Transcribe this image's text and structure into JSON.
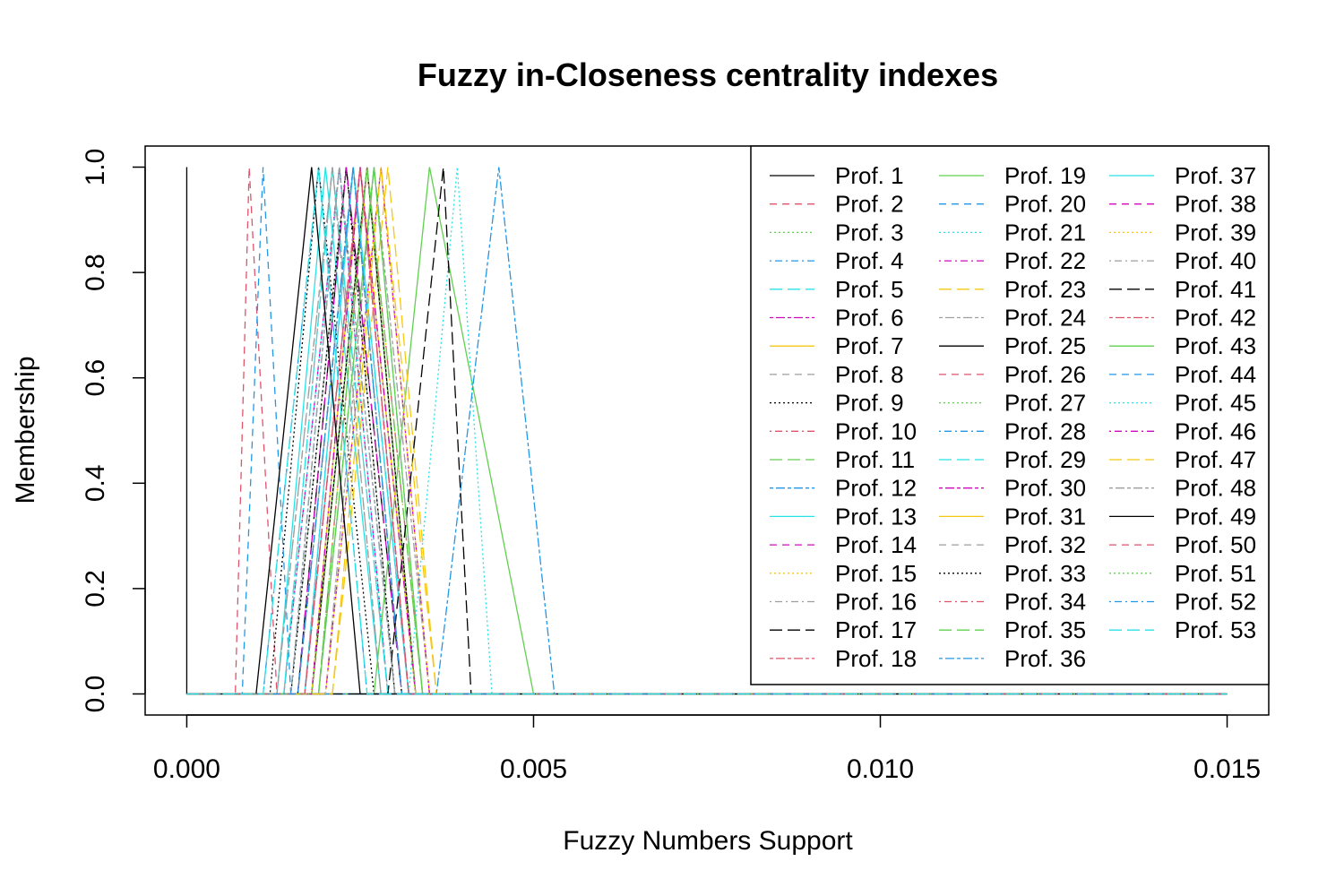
{
  "chart_data": {
    "type": "line",
    "title": "Fuzzy in-Closeness centrality indexes",
    "xlabel": "Fuzzy Numbers Support",
    "ylabel": "Membership",
    "xlim": [
      -0.0006,
      0.0156
    ],
    "ylim": [
      -0.04,
      1.04
    ],
    "x_ticks": [
      0.0,
      0.005,
      0.01,
      0.015
    ],
    "x_tick_labels": [
      "0.000",
      "0.005",
      "0.010",
      "0.015"
    ],
    "y_ticks": [
      0.0,
      0.2,
      0.4,
      0.6,
      0.8,
      1.0
    ],
    "y_tick_labels": [
      "0.0",
      "0.2",
      "0.4",
      "0.6",
      "0.8",
      "1.0"
    ],
    "grid": false,
    "legend_position": "top-right",
    "legend_columns": 3,
    "palette": [
      "#000000",
      "#DF536B",
      "#61D04F",
      "#2297E6",
      "#28E2E5",
      "#CD0BBC",
      "#F5C710",
      "#9E9E9E"
    ],
    "linetype_cycle": [
      "solid",
      "dashed",
      "dotted",
      "dotdash",
      "longdash",
      "twodash"
    ],
    "series": [
      {
        "name": "Prof. 1",
        "x": [
          0,
          0,
          0,
          0.015
        ],
        "y": [
          0,
          1,
          0,
          0
        ]
      },
      {
        "name": "Prof. 2",
        "x": [
          0,
          0.0007,
          0.0009,
          0.0013,
          0.015
        ],
        "y": [
          0,
          0,
          1,
          0,
          0
        ]
      },
      {
        "name": "Prof. 3",
        "x": [
          0,
          0.0016,
          0.0024,
          0.0031,
          0.015
        ],
        "y": [
          0,
          0,
          1,
          0,
          0
        ]
      },
      {
        "name": "Prof. 4",
        "x": [
          0,
          0.0011,
          0.0019,
          0.0026,
          0.015
        ],
        "y": [
          0,
          0,
          1,
          0,
          0
        ]
      },
      {
        "name": "Prof. 5",
        "x": [
          0,
          0.0017,
          0.0025,
          0.0032,
          0.015
        ],
        "y": [
          0,
          0,
          1,
          0,
          0
        ]
      },
      {
        "name": "Prof. 6",
        "x": [
          0,
          0.0014,
          0.0022,
          0.0029,
          0.015
        ],
        "y": [
          0,
          0,
          1,
          0,
          0
        ]
      },
      {
        "name": "Prof. 7",
        "x": [
          0,
          0.0018,
          0.0026,
          0.0033,
          0.015
        ],
        "y": [
          0,
          0,
          1,
          0,
          0
        ]
      },
      {
        "name": "Prof. 8",
        "x": [
          0,
          0.0015,
          0.0023,
          0.003,
          0.015
        ],
        "y": [
          0,
          0,
          1,
          0,
          0
        ]
      },
      {
        "name": "Prof. 9",
        "x": [
          0,
          0.0012,
          0.0019,
          0.0027,
          0.015
        ],
        "y": [
          0,
          0,
          1,
          0,
          0
        ]
      },
      {
        "name": "Prof. 10",
        "x": [
          0,
          0.0016,
          0.0024,
          0.0031,
          0.015
        ],
        "y": [
          0,
          0,
          1,
          0,
          0
        ]
      },
      {
        "name": "Prof. 11",
        "x": [
          0,
          0.0018,
          0.0025,
          0.0033,
          0.015
        ],
        "y": [
          0,
          0,
          1,
          0,
          0
        ]
      },
      {
        "name": "Prof. 12",
        "x": [
          0,
          0.0015,
          0.0022,
          0.003,
          0.015
        ],
        "y": [
          0,
          0,
          1,
          0,
          0
        ]
      },
      {
        "name": "Prof. 13",
        "x": [
          0,
          0.0013,
          0.002,
          0.0028,
          0.015
        ],
        "y": [
          0,
          0,
          1,
          0,
          0
        ]
      },
      {
        "name": "Prof. 14",
        "x": [
          0,
          0.0017,
          0.0024,
          0.0032,
          0.015
        ],
        "y": [
          0,
          0,
          1,
          0,
          0
        ]
      },
      {
        "name": "Prof. 15",
        "x": [
          0,
          0.0019,
          0.0026,
          0.0034,
          0.015
        ],
        "y": [
          0,
          0,
          1,
          0,
          0
        ]
      },
      {
        "name": "Prof. 16",
        "x": [
          0,
          0.0014,
          0.0021,
          0.0029,
          0.015
        ],
        "y": [
          0,
          0,
          1,
          0,
          0
        ]
      },
      {
        "name": "Prof. 17",
        "x": [
          0,
          0.0016,
          0.0023,
          0.0031,
          0.015
        ],
        "y": [
          0,
          0,
          1,
          0,
          0
        ]
      },
      {
        "name": "Prof. 18",
        "x": [
          0,
          0.0017,
          0.0025,
          0.0032,
          0.015
        ],
        "y": [
          0,
          0,
          1,
          0,
          0
        ]
      },
      {
        "name": "Prof. 19",
        "x": [
          0,
          0.0027,
          0.0035,
          0.005,
          0.015
        ],
        "y": [
          0,
          0,
          1,
          0,
          0
        ]
      },
      {
        "name": "Prof. 20",
        "x": [
          0,
          0.0008,
          0.0011,
          0.0015,
          0.015
        ],
        "y": [
          0,
          0,
          1,
          0,
          0
        ]
      },
      {
        "name": "Prof. 21",
        "x": [
          0,
          0.0032,
          0.0039,
          0.0044,
          0.015
        ],
        "y": [
          0,
          0,
          1,
          0,
          0
        ]
      },
      {
        "name": "Prof. 22",
        "x": [
          0,
          0.0018,
          0.0025,
          0.0033,
          0.015
        ],
        "y": [
          0,
          0,
          1,
          0,
          0
        ]
      },
      {
        "name": "Prof. 23",
        "x": [
          0,
          0.0021,
          0.0029,
          0.0036,
          0.015
        ],
        "y": [
          0,
          0,
          1,
          0,
          0
        ]
      },
      {
        "name": "Prof. 24",
        "x": [
          0,
          0.002,
          0.0027,
          0.0035,
          0.015
        ],
        "y": [
          0,
          0,
          1,
          0,
          0
        ]
      },
      {
        "name": "Prof. 25",
        "x": [
          0,
          0.0018,
          0.0026,
          0.0033,
          0.015
        ],
        "y": [
          0,
          0,
          1,
          0,
          0
        ]
      },
      {
        "name": "Prof. 26",
        "x": [
          0,
          0.0019,
          0.0026,
          0.0034,
          0.015
        ],
        "y": [
          0,
          0,
          1,
          0,
          0
        ]
      },
      {
        "name": "Prof. 27",
        "x": [
          0,
          0.0015,
          0.0023,
          0.003,
          0.015
        ],
        "y": [
          0,
          0,
          1,
          0,
          0
        ]
      },
      {
        "name": "Prof. 28",
        "x": [
          0,
          0.0019,
          0.0027,
          0.0034,
          0.015
        ],
        "y": [
          0,
          0,
          1,
          0,
          0
        ]
      },
      {
        "name": "Prof. 29",
        "x": [
          0,
          0.0014,
          0.0021,
          0.0029,
          0.015
        ],
        "y": [
          0,
          0,
          1,
          0,
          0
        ]
      },
      {
        "name": "Prof. 30",
        "x": [
          0,
          0.002,
          0.0028,
          0.0035,
          0.015
        ],
        "y": [
          0,
          0,
          1,
          0,
          0
        ]
      },
      {
        "name": "Prof. 31",
        "x": [
          0,
          0.0018,
          0.0025,
          0.0033,
          0.015
        ],
        "y": [
          0,
          0,
          1,
          0,
          0
        ]
      },
      {
        "name": "Prof. 32",
        "x": [
          0,
          0.0013,
          0.0021,
          0.0028,
          0.015
        ],
        "y": [
          0,
          0,
          1,
          0,
          0
        ]
      },
      {
        "name": "Prof. 33",
        "x": [
          0,
          0.0015,
          0.0023,
          0.003,
          0.015
        ],
        "y": [
          0,
          0,
          1,
          0,
          0
        ]
      },
      {
        "name": "Prof. 34",
        "x": [
          0,
          0.0016,
          0.0024,
          0.0031,
          0.015
        ],
        "y": [
          0,
          0,
          1,
          0,
          0
        ]
      },
      {
        "name": "Prof. 35",
        "x": [
          0,
          0.0019,
          0.0026,
          0.0034,
          0.015
        ],
        "y": [
          0,
          0,
          1,
          0,
          0
        ]
      },
      {
        "name": "Prof. 36",
        "x": [
          0,
          0.0036,
          0.0045,
          0.0053,
          0.015
        ],
        "y": [
          0,
          0,
          1,
          0,
          0
        ]
      },
      {
        "name": "Prof. 37",
        "x": [
          0,
          0.0017,
          0.0024,
          0.0032,
          0.015
        ],
        "y": [
          0,
          0,
          1,
          0,
          0
        ]
      },
      {
        "name": "Prof. 38",
        "x": [
          0,
          0.0016,
          0.0023,
          0.0031,
          0.015
        ],
        "y": [
          0,
          0,
          1,
          0,
          0
        ]
      },
      {
        "name": "Prof. 39",
        "x": [
          0,
          0.002,
          0.0028,
          0.0035,
          0.015
        ],
        "y": [
          0,
          0,
          1,
          0,
          0
        ]
      },
      {
        "name": "Prof. 40",
        "x": [
          0,
          0.0013,
          0.0021,
          0.0028,
          0.015
        ],
        "y": [
          0,
          0,
          1,
          0,
          0
        ]
      },
      {
        "name": "Prof. 41",
        "x": [
          0,
          0.0029,
          0.0037,
          0.0041,
          0.015
        ],
        "y": [
          0,
          0,
          1,
          0,
          0
        ]
      },
      {
        "name": "Prof. 42",
        "x": [
          0,
          0.0017,
          0.0025,
          0.0032,
          0.015
        ],
        "y": [
          0,
          0,
          1,
          0,
          0
        ]
      },
      {
        "name": "Prof. 43",
        "x": [
          0,
          0.0019,
          0.0027,
          0.0034,
          0.015
        ],
        "y": [
          0,
          0,
          1,
          0,
          0
        ]
      },
      {
        "name": "Prof. 44",
        "x": [
          0,
          0.0016,
          0.0024,
          0.0031,
          0.015
        ],
        "y": [
          0,
          0,
          1,
          0,
          0
        ]
      },
      {
        "name": "Prof. 45",
        "x": [
          0,
          0.0014,
          0.0022,
          0.0029,
          0.015
        ],
        "y": [
          0,
          0,
          1,
          0,
          0
        ]
      },
      {
        "name": "Prof. 46",
        "x": [
          0,
          0.0018,
          0.0025,
          0.0033,
          0.015
        ],
        "y": [
          0,
          0,
          1,
          0,
          0
        ]
      },
      {
        "name": "Prof. 47",
        "x": [
          0,
          0.0021,
          0.0028,
          0.0036,
          0.015
        ],
        "y": [
          0,
          0,
          1,
          0,
          0
        ]
      },
      {
        "name": "Prof. 48",
        "x": [
          0,
          0.0015,
          0.0022,
          0.003,
          0.015
        ],
        "y": [
          0,
          0,
          1,
          0,
          0
        ]
      },
      {
        "name": "Prof. 49",
        "x": [
          0,
          0.001,
          0.0018,
          0.0025,
          0.015
        ],
        "y": [
          0,
          0,
          1,
          0,
          0
        ]
      },
      {
        "name": "Prof. 50",
        "x": [
          0,
          0.0017,
          0.0025,
          0.0032,
          0.015
        ],
        "y": [
          0,
          0,
          1,
          0,
          0
        ]
      },
      {
        "name": "Prof. 51",
        "x": [
          0,
          0.0018,
          0.0026,
          0.0033,
          0.015
        ],
        "y": [
          0,
          0,
          1,
          0,
          0
        ]
      },
      {
        "name": "Prof. 52",
        "x": [
          0,
          0.0016,
          0.0024,
          0.0031,
          0.015
        ],
        "y": [
          0,
          0,
          1,
          0,
          0
        ]
      },
      {
        "name": "Prof. 53",
        "x": [
          0,
          0.0011,
          0.0019,
          0.0026,
          0.015
        ],
        "y": [
          0,
          0,
          1,
          0,
          0
        ]
      }
    ]
  }
}
